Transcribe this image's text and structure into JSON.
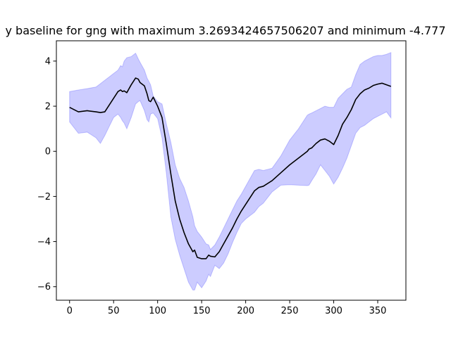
{
  "chart_data": {
    "type": "line",
    "title": "y baseline for gng with maximum 3.2693424657506207 and minimum -4.777",
    "xlabel": "",
    "ylabel": "",
    "xlim": [
      -15,
      382
    ],
    "ylim": [
      -6.6,
      4.9
    ],
    "xticks": [
      0,
      50,
      100,
      150,
      200,
      250,
      300,
      350
    ],
    "xtick_labels": [
      "0",
      "50",
      "100",
      "150",
      "200",
      "250",
      "300",
      "350"
    ],
    "yticks": [
      -6,
      -4,
      -2,
      0,
      2,
      4
    ],
    "ytick_labels": [
      "−6",
      "−4",
      "−2",
      "0",
      "2",
      "4"
    ],
    "grid": false,
    "legend": "none",
    "colors": {
      "line": "#000000",
      "band_fill": "#0000ff",
      "band_opacity": 0.2
    },
    "x": [
      0,
      10,
      20,
      30,
      35,
      40,
      45,
      50,
      55,
      58,
      60,
      62,
      65,
      70,
      75,
      78,
      80,
      85,
      88,
      90,
      92,
      95,
      100,
      105,
      110,
      115,
      120,
      125,
      130,
      135,
      140,
      142,
      145,
      150,
      155,
      158,
      160,
      165,
      170,
      175,
      180,
      185,
      190,
      195,
      200,
      210,
      215,
      220,
      230,
      240,
      250,
      260,
      270,
      272,
      275,
      280,
      285,
      290,
      295,
      300,
      305,
      310,
      315,
      320,
      325,
      330,
      335,
      340,
      345,
      350,
      355,
      360,
      365
    ],
    "series": [
      {
        "values": [
          1.95,
          1.75,
          1.8,
          1.75,
          1.72,
          1.75,
          2.05,
          2.35,
          2.65,
          2.72,
          2.65,
          2.68,
          2.6,
          2.95,
          3.25,
          3.2,
          3.05,
          2.9,
          2.55,
          2.25,
          2.2,
          2.4,
          2.0,
          1.5,
          0.3,
          -1.0,
          -2.2,
          -3.0,
          -3.6,
          -4.1,
          -4.45,
          -4.38,
          -4.7,
          -4.76,
          -4.76,
          -4.6,
          -4.65,
          -4.68,
          -4.45,
          -4.1,
          -3.75,
          -3.4,
          -3.0,
          -2.65,
          -2.35,
          -1.75,
          -1.6,
          -1.55,
          -1.3,
          -0.95,
          -0.6,
          -0.3,
          0.0,
          0.1,
          0.15,
          0.35,
          0.5,
          0.55,
          0.45,
          0.3,
          0.7,
          1.2,
          1.5,
          1.85,
          2.3,
          2.55,
          2.72,
          2.8,
          2.92,
          2.98,
          3.02,
          2.95,
          2.88
        ],
        "lower": [
          1.3,
          0.8,
          0.85,
          0.6,
          0.35,
          0.7,
          1.1,
          1.5,
          1.65,
          1.5,
          1.35,
          1.25,
          1.0,
          1.5,
          2.1,
          2.2,
          2.25,
          1.8,
          1.4,
          1.3,
          1.65,
          1.7,
          1.45,
          0.6,
          -1.0,
          -2.9,
          -3.9,
          -4.6,
          -5.2,
          -5.8,
          -6.15,
          -6.15,
          -5.8,
          -6.05,
          -5.75,
          -5.45,
          -5.55,
          -5.05,
          -5.2,
          -4.95,
          -4.55,
          -4.05,
          -3.6,
          -3.2,
          -3.0,
          -2.7,
          -2.45,
          -2.3,
          -1.8,
          -1.5,
          -1.48,
          -1.5,
          -1.52,
          -1.5,
          -1.3,
          -1.0,
          -0.6,
          -0.85,
          -1.1,
          -1.45,
          -1.15,
          -0.75,
          -0.3,
          0.25,
          0.8,
          1.05,
          1.15,
          1.3,
          1.45,
          1.55,
          1.65,
          1.75,
          1.48
        ],
        "upper": [
          2.65,
          2.72,
          2.78,
          2.85,
          3.0,
          3.15,
          3.3,
          3.45,
          3.6,
          3.8,
          3.75,
          4.0,
          4.15,
          4.2,
          4.35,
          4.1,
          3.95,
          3.6,
          3.25,
          3.1,
          2.95,
          2.45,
          2.2,
          2.1,
          1.2,
          0.4,
          -0.6,
          -1.2,
          -1.6,
          -2.2,
          -2.9,
          -3.3,
          -3.55,
          -3.8,
          -4.1,
          -4.15,
          -4.35,
          -4.15,
          -3.8,
          -3.4,
          -3.0,
          -2.6,
          -2.2,
          -1.9,
          -1.55,
          -0.85,
          -0.8,
          -0.85,
          -0.75,
          -0.2,
          0.5,
          1.0,
          1.6,
          1.65,
          1.7,
          1.8,
          1.9,
          2.0,
          1.95,
          1.95,
          2.35,
          2.55,
          2.75,
          2.85,
          3.4,
          3.85,
          4.0,
          4.1,
          4.2,
          4.25,
          4.25,
          4.3,
          4.38
        ]
      }
    ]
  }
}
